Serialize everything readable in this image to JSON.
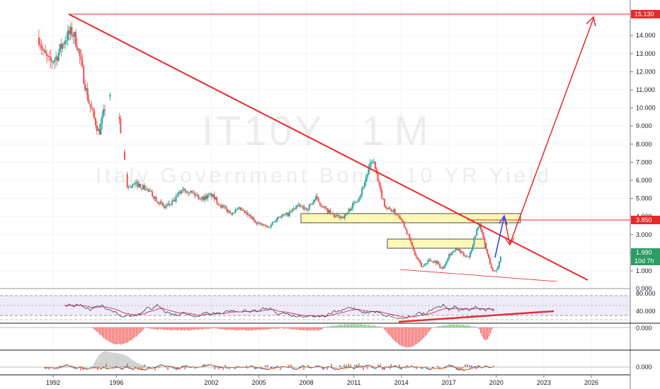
{
  "symbol": "IT10Y",
  "interval": "1M",
  "description": "Italy Government Bonds 10 YR Yield",
  "colors": {
    "up": "#26a69a",
    "down": "#ef5350",
    "drawing": "#e8292a",
    "zone_fill": "#fff59d",
    "blue_arrow": "#2b45e8",
    "last_tag": "#2e9c62",
    "rsi": "#2b2b2b",
    "rsi_ma": "#c2185b",
    "hist_pos": "#66bb6a",
    "hist_neg": "#ef5350",
    "osc_blue": "#1e40c8",
    "osc_orange": "#f57c00"
  },
  "price_tags": [
    {
      "label": "15.130",
      "value": 15.13,
      "color": "#e8292a"
    },
    {
      "label": "3.850",
      "value": 3.85,
      "color": "#e8292a"
    },
    {
      "label": "1.990",
      "value": 1.99,
      "color": "#2e9c62"
    },
    {
      "label": "10d 7h",
      "value": 1.5,
      "color": "#2e9c62"
    }
  ],
  "panel_labels": {
    "rsi_top": "80.000",
    "rsi_bottom": "40.000",
    "rsi_top_right": "0.000",
    "hist_zero": "0.000",
    "osc_zero": "0.000"
  },
  "chart_data": {
    "type": "candlestick",
    "x_range": [
      1990.3,
      2029.6
    ],
    "y_range": [
      0.3,
      15.6
    ],
    "y_ticks": [
      "1.000",
      "2.000",
      "3.000",
      "4.000",
      "5.000",
      "6.000",
      "7.000",
      "8.000",
      "9.000",
      "10.000",
      "11.000",
      "12.000",
      "13.000",
      "14.000"
    ],
    "x_ticks": [
      "1992",
      "1996",
      "2002",
      "2005",
      "2008",
      "2011",
      "2014",
      "2017",
      "2020",
      "2023",
      "2026"
    ],
    "price_path": [
      [
        1991.1,
        13.9
      ],
      [
        1991.4,
        13.0
      ],
      [
        1991.8,
        12.5
      ],
      [
        1992.2,
        12.8
      ],
      [
        1992.8,
        13.9
      ],
      [
        1993.2,
        14.2
      ],
      [
        1993.5,
        13.6
      ],
      [
        1993.9,
        11.8
      ],
      [
        1994.2,
        10.5
      ],
      [
        1994.6,
        9.4
      ],
      [
        1994.9,
        8.6
      ],
      [
        1995.4,
        10.5
      ],
      [
        1995.8,
        10.9
      ],
      [
        1996.3,
        8.6
      ],
      [
        1996.7,
        5.6
      ],
      [
        1997.3,
        5.8
      ],
      [
        1997.9,
        5.5
      ],
      [
        1998.5,
        5.0
      ],
      [
        1999.0,
        4.5
      ],
      [
        1999.6,
        4.8
      ],
      [
        2000.2,
        5.6
      ],
      [
        2000.8,
        5.3
      ],
      [
        2001.4,
        5.0
      ],
      [
        2002.0,
        5.2
      ],
      [
        2002.6,
        4.6
      ],
      [
        2003.2,
        4.2
      ],
      [
        2003.8,
        4.4
      ],
      [
        2004.4,
        4.0
      ],
      [
        2005.0,
        3.6
      ],
      [
        2005.6,
        3.4
      ],
      [
        2006.2,
        4.0
      ],
      [
        2006.8,
        4.1
      ],
      [
        2007.4,
        4.6
      ],
      [
        2008.0,
        4.4
      ],
      [
        2008.6,
        5.0
      ],
      [
        2009.2,
        4.4
      ],
      [
        2009.8,
        4.0
      ],
      [
        2010.4,
        4.0
      ],
      [
        2010.9,
        4.6
      ],
      [
        2011.4,
        5.2
      ],
      [
        2011.9,
        6.5
      ],
      [
        2012.2,
        7.2
      ],
      [
        2012.6,
        5.6
      ],
      [
        2013.0,
        4.5
      ],
      [
        2013.5,
        4.3
      ],
      [
        2014.0,
        3.9
      ],
      [
        2014.5,
        2.8
      ],
      [
        2014.9,
        1.8
      ],
      [
        2015.3,
        1.2
      ],
      [
        2015.7,
        1.6
      ],
      [
        2016.2,
        1.5
      ],
      [
        2016.6,
        1.1
      ],
      [
        2017.0,
        1.9
      ],
      [
        2017.5,
        2.2
      ],
      [
        2017.9,
        1.9
      ],
      [
        2018.3,
        1.8
      ],
      [
        2018.7,
        3.1
      ],
      [
        2018.95,
        3.6
      ],
      [
        2019.2,
        2.7
      ],
      [
        2019.5,
        1.7
      ],
      [
        2019.8,
        0.9
      ],
      [
        2020.1,
        1.2
      ],
      [
        2020.3,
        1.99
      ]
    ]
  }
}
